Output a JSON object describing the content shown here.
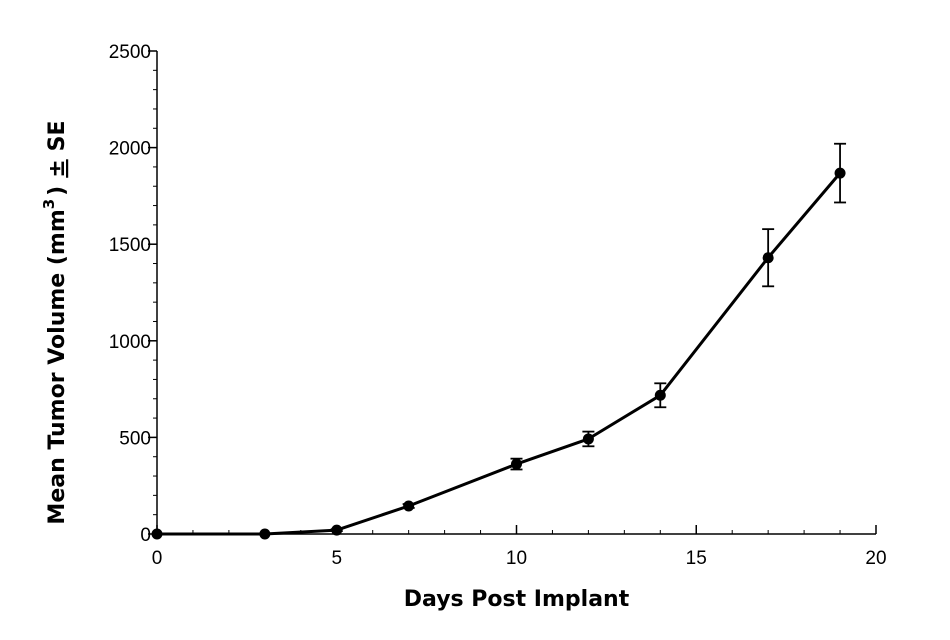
{
  "chart_data": {
    "type": "line",
    "title": "",
    "xlabel": "Days Post Implant",
    "ylabel": {
      "main": "Mean Tumor Volume (mm",
      "superscript": "3",
      "close": ")",
      "pm": "±",
      "suffix": "SE"
    },
    "xlim": [
      0,
      20
    ],
    "ylim": [
      0,
      2500
    ],
    "x_ticks": [
      0,
      5,
      10,
      15,
      20
    ],
    "x_tick_labels": [
      "0",
      "5",
      "10",
      "15",
      "20"
    ],
    "y_ticks": [
      0,
      500,
      1000,
      1500,
      2000,
      2500
    ],
    "y_tick_labels": [
      "0",
      "500",
      "1000",
      "1500",
      "2000",
      "2500"
    ],
    "x_minor_step": 1,
    "y_minor_step": 100,
    "grid": false,
    "legend": "none",
    "series": [
      {
        "x": [
          0,
          3,
          5,
          7,
          10,
          12,
          14,
          17,
          19
        ],
        "y": [
          0,
          0,
          20,
          145,
          362,
          492,
          718,
          1430,
          1868
        ],
        "se": [
          0,
          0,
          5,
          10,
          28,
          38,
          62,
          148,
          152
        ],
        "color": "#000000"
      }
    ]
  }
}
